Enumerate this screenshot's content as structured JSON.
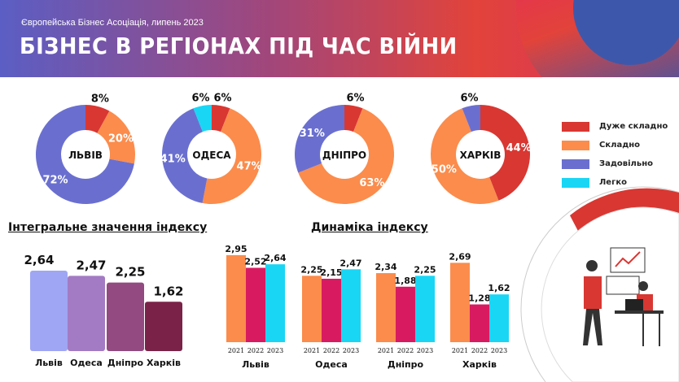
{
  "header": {
    "subtitle": "Європейська Бізнес Асоціація, липень 2023",
    "title": "БІЗНЕС В РЕГІОНАХ ПІД ЧАС ВІЙНИ"
  },
  "colors": {
    "very_hard": "#d93732",
    "hard": "#fb8c4c",
    "satisfactory": "#6a6fcf",
    "easy": "#19d6f5",
    "y2021": "#fb8c4c",
    "y2022": "#d81b60",
    "y2023": "#19d6f5",
    "integral": [
      "#9fa6f3",
      "#a37bc4",
      "#924a80",
      "#7a2248"
    ]
  },
  "legend": [
    {
      "label": "Дуже складно",
      "key": "very_hard"
    },
    {
      "label": "Складно",
      "key": "hard"
    },
    {
      "label": "Задовільно",
      "key": "satisfactory"
    },
    {
      "label": "Легко",
      "key": "easy"
    }
  ],
  "chart_data": [
    {
      "type": "pie",
      "variant": "donut",
      "title": "ЛЬВІВ",
      "slices": [
        {
          "key": "very_hard",
          "value": 8,
          "label": "8%"
        },
        {
          "key": "hard",
          "value": 20,
          "label": "20%"
        },
        {
          "key": "satisfactory",
          "value": 72,
          "label": "72%"
        }
      ]
    },
    {
      "type": "pie",
      "variant": "donut",
      "title": "ОДЕСА",
      "slices": [
        {
          "key": "very_hard",
          "value": 6,
          "label": "6%"
        },
        {
          "key": "hard",
          "value": 47,
          "label": "47%"
        },
        {
          "key": "satisfactory",
          "value": 41,
          "label": "41%"
        },
        {
          "key": "easy",
          "value": 6,
          "label": "6%"
        }
      ]
    },
    {
      "type": "pie",
      "variant": "donut",
      "title": "ДНІПРО",
      "slices": [
        {
          "key": "very_hard",
          "value": 6,
          "label": "6%"
        },
        {
          "key": "hard",
          "value": 63,
          "label": "63%"
        },
        {
          "key": "satisfactory",
          "value": 31,
          "label": "31%"
        }
      ]
    },
    {
      "type": "pie",
      "variant": "donut",
      "title": "ХАРКІВ",
      "slices": [
        {
          "key": "very_hard",
          "value": 44,
          "label": "44%"
        },
        {
          "key": "hard",
          "value": 50,
          "label": "50%"
        },
        {
          "key": "satisfactory",
          "value": 6,
          "label": "6%"
        }
      ]
    },
    {
      "type": "bar",
      "title": "Інтегральне значення індексу",
      "categories": [
        "Львів",
        "Одеса",
        "Дніпро",
        "Харків"
      ],
      "values": [
        2.64,
        2.47,
        2.25,
        1.62
      ],
      "labels": [
        "2,64",
        "2,47",
        "2,25",
        "1,62"
      ]
    },
    {
      "type": "bar",
      "title": "Динаміка індексу",
      "categories": [
        "Львів",
        "Одеса",
        "Дніпро",
        "Харків"
      ],
      "years": [
        "2021",
        "2022",
        "2023"
      ],
      "groups": [
        {
          "values": [
            2.95,
            2.52,
            2.64
          ],
          "labels": [
            "2,95",
            "2,52",
            "2,64"
          ]
        },
        {
          "values": [
            2.25,
            2.15,
            2.47
          ],
          "labels": [
            "2,25",
            "2,15",
            "2,47"
          ]
        },
        {
          "values": [
            2.34,
            1.88,
            2.25
          ],
          "labels": [
            "2,34",
            "1,88",
            "2,25"
          ]
        },
        {
          "values": [
            2.69,
            1.28,
            1.62
          ],
          "labels": [
            "2,69",
            "1,28",
            "1,62"
          ]
        }
      ]
    }
  ]
}
